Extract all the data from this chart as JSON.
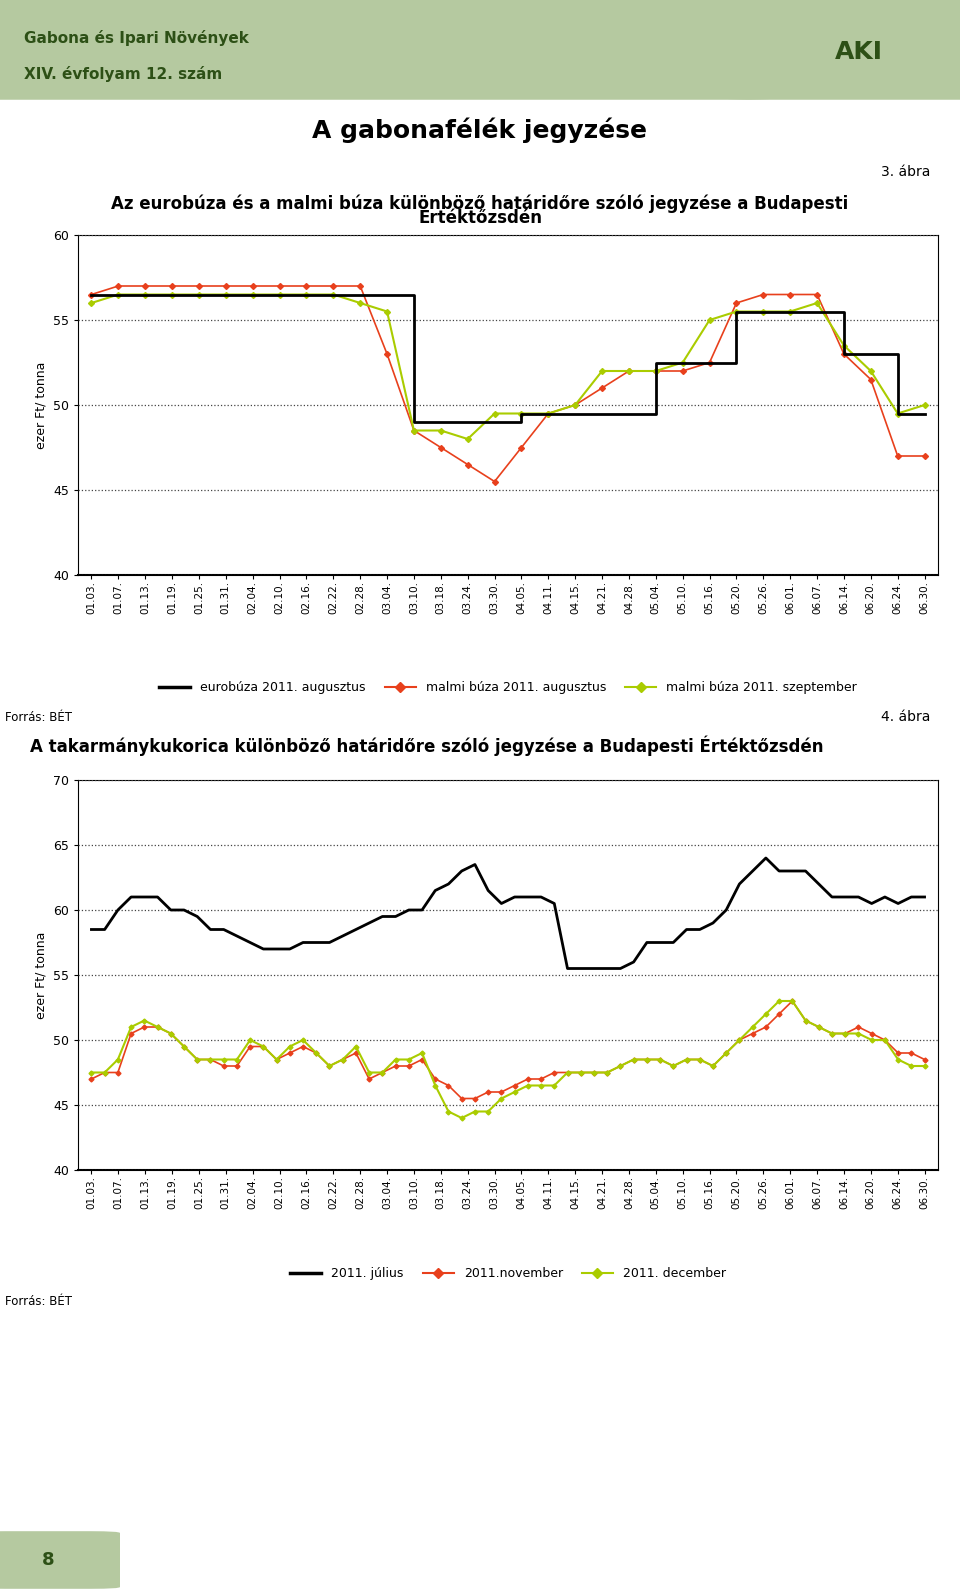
{
  "page_title_line1": "Gabona és Ipari Növények",
  "page_title_line2": "XIV. évfolyam 12. szám",
  "section_title": "A gabonafélék jegyzése",
  "header_bg_color": "#b5c9a0",
  "header_text_color": "#2d5016",
  "chart1_label": "3. ábra",
  "chart1_title_line1": "Az eurobúza és a malmi búza különböző határidőre szóló jegyzése a Budapesti",
  "chart1_title_line2": "Értéktőzsdén",
  "chart1_ylabel": "ezer Ft/ tonna",
  "chart1_ylim": [
    40,
    60
  ],
  "chart1_yticks": [
    40,
    45,
    50,
    55,
    60
  ],
  "chart1_source": "Forrás: BÉT",
  "chart1_legend": [
    "eurobúza 2011. augusztus",
    "malmi búza 2011. augusztus",
    "malmi búza 2011. szeptember"
  ],
  "chart2_label": "4. ábra",
  "chart2_title": "A takarmánykukorica különböző határidőre szóló jegyzése a Budapesti Értéktőzsdén",
  "chart2_ylabel": "ezer Ft/ tonna",
  "chart2_ylim": [
    40,
    70
  ],
  "chart2_yticks": [
    40,
    45,
    50,
    55,
    60,
    65,
    70
  ],
  "chart2_source": "Forrás: BÉT",
  "chart2_legend": [
    "2011. július",
    "2011.november",
    "2011. december"
  ],
  "line_black": "#000000",
  "line_red": "#e8401c",
  "line_green": "#aacc00",
  "x_labels": [
    "01.03.",
    "01.07.",
    "01.13.",
    "01.19.",
    "01.25.",
    "01.31.",
    "02.04.",
    "02.10.",
    "02.16.",
    "02.22.",
    "02.28.",
    "03.04.",
    "03.10.",
    "03.18.",
    "03.24.",
    "03.30.",
    "04.05.",
    "04.11.",
    "04.15.",
    "04.21.",
    "04.28.",
    "05.04.",
    "05.10.",
    "05.16.",
    "05.20.",
    "05.26.",
    "06.01.",
    "06.07.",
    "06.14.",
    "06.20.",
    "06.24.",
    "06.30."
  ],
  "chart1_euro_aug": [
    56.5,
    56.5,
    56.5,
    56.5,
    56.5,
    56.5,
    56.5,
    56.5,
    56.5,
    56.5,
    56.5,
    56.5,
    49.0,
    49.0,
    49.0,
    49.0,
    49.5,
    49.5,
    49.5,
    49.5,
    49.5,
    52.5,
    52.5,
    52.5,
    55.5,
    55.5,
    55.5,
    55.5,
    53.0,
    53.0,
    49.5,
    49.5
  ],
  "chart1_malmi_aug": [
    56.5,
    57.0,
    57.0,
    57.0,
    57.0,
    57.0,
    57.0,
    57.0,
    57.0,
    57.0,
    57.0,
    53.0,
    48.5,
    47.5,
    46.5,
    45.5,
    47.5,
    49.5,
    50.0,
    51.0,
    52.0,
    52.0,
    52.0,
    52.5,
    56.0,
    56.5,
    56.5,
    56.5,
    53.0,
    51.5,
    47.0,
    47.0
  ],
  "chart1_malmi_sep": [
    56.0,
    56.5,
    56.5,
    56.5,
    56.5,
    56.5,
    56.5,
    56.5,
    56.5,
    56.5,
    56.0,
    55.5,
    48.5,
    48.5,
    48.0,
    49.5,
    49.5,
    49.5,
    50.0,
    52.0,
    52.0,
    52.0,
    52.5,
    55.0,
    55.5,
    55.5,
    55.5,
    56.0,
    53.5,
    52.0,
    49.5,
    50.0
  ],
  "chart2_july": [
    58.5,
    58.5,
    60.0,
    61.0,
    61.0,
    61.0,
    60.0,
    60.0,
    59.5,
    58.5,
    58.5,
    58.0,
    57.5,
    57.0,
    57.0,
    57.0,
    57.5,
    57.5,
    57.5,
    58.0,
    58.5,
    59.0,
    59.5,
    59.5,
    60.0,
    60.0,
    61.5,
    62.0,
    63.0,
    63.5,
    61.5,
    60.5,
    61.0,
    61.0,
    61.0,
    60.5,
    55.5,
    55.5,
    55.5,
    55.5,
    55.5,
    56.0,
    57.5,
    57.5,
    57.5,
    58.5,
    58.5,
    59.0,
    60.0,
    62.0,
    63.0,
    64.0,
    63.0,
    63.0,
    63.0,
    62.0,
    61.0,
    61.0,
    61.0,
    60.5,
    61.0,
    60.5,
    61.0,
    61.0
  ],
  "chart2_nov": [
    47.0,
    47.5,
    47.5,
    50.5,
    51.0,
    51.0,
    50.5,
    49.5,
    48.5,
    48.5,
    48.0,
    48.0,
    49.5,
    49.5,
    48.5,
    49.0,
    49.5,
    49.0,
    48.0,
    48.5,
    49.0,
    47.0,
    47.5,
    48.0,
    48.0,
    48.5,
    47.0,
    46.5,
    45.5,
    45.5,
    46.0,
    46.0,
    46.5,
    47.0,
    47.0,
    47.5,
    47.5,
    47.5,
    47.5,
    47.5,
    48.0,
    48.5,
    48.5,
    48.5,
    48.0,
    48.5,
    48.5,
    48.0,
    49.0,
    50.0,
    50.5,
    51.0,
    52.0,
    53.0,
    51.5,
    51.0,
    50.5,
    50.5,
    51.0,
    50.5,
    50.0,
    49.0,
    49.0,
    48.5
  ],
  "chart2_dec": [
    47.5,
    47.5,
    48.5,
    51.0,
    51.5,
    51.0,
    50.5,
    49.5,
    48.5,
    48.5,
    48.5,
    48.5,
    50.0,
    49.5,
    48.5,
    49.5,
    50.0,
    49.0,
    48.0,
    48.5,
    49.5,
    47.5,
    47.5,
    48.5,
    48.5,
    49.0,
    46.5,
    44.5,
    44.0,
    44.5,
    44.5,
    45.5,
    46.0,
    46.5,
    46.5,
    46.5,
    47.5,
    47.5,
    47.5,
    47.5,
    48.0,
    48.5,
    48.5,
    48.5,
    48.0,
    48.5,
    48.5,
    48.0,
    49.0,
    50.0,
    51.0,
    52.0,
    53.0,
    53.0,
    51.5,
    51.0,
    50.5,
    50.5,
    50.5,
    50.0,
    50.0,
    48.5,
    48.0,
    48.0
  ],
  "page_num": "8"
}
